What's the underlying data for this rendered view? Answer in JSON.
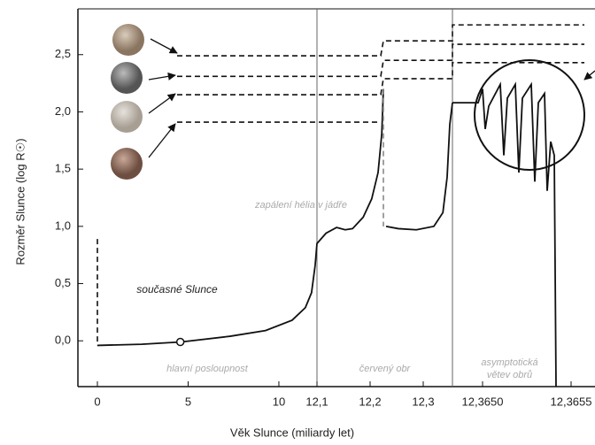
{
  "chart_data": {
    "type": "line",
    "y_label": "Rozměr Slunce (log R☉)",
    "x_label": "Věk Slunce (miliardy let)",
    "ylim": [
      -0.4,
      2.9
    ],
    "yticks": [
      {
        "value": 0,
        "label": "0,0"
      },
      {
        "value": 0.5,
        "label": "0,5"
      },
      {
        "value": 1,
        "label": "1,0"
      },
      {
        "value": 1.5,
        "label": "1,5"
      },
      {
        "value": 2,
        "label": "2,0"
      },
      {
        "value": 2.5,
        "label": "2,5"
      }
    ],
    "x_segments": [
      {
        "xlim": [
          0,
          12.1
        ],
        "xticks": [
          0,
          5,
          10
        ],
        "label": [
          "hlavní posloupnost"
        ]
      },
      {
        "xlim": [
          12.1,
          12.355
        ],
        "xticks": [
          {
            "value": 12.1,
            "label": "12,1"
          },
          {
            "value": 12.2,
            "label": "12,2"
          },
          {
            "value": 12.3,
            "label": "12,3"
          }
        ],
        "label": [
          "červený obr"
        ]
      },
      {
        "xlim": [
          12.36483,
          12.365635
        ],
        "xticks": [
          {
            "value": 12.365,
            "label": "12,3650"
          },
          {
            "value": 12.3655,
            "label": "12,3655"
          }
        ],
        "label": [
          "asymptotická",
          "větev obrů"
        ]
      }
    ],
    "series": [
      {
        "color": "#111",
        "dashed": false,
        "x": [
          0,
          2.44,
          4.63,
          7.32,
          9.27,
          10.73,
          11.46,
          11.8,
          12.0,
          12.1,
          12.117,
          12.137,
          12.153,
          12.167,
          12.187,
          12.203,
          12.215,
          12.222,
          12.225,
          null,
          12.23,
          12.253,
          12.287,
          12.32,
          12.337,
          12.345,
          12.35,
          12.355,
          null,
          12.36483,
          12.364975,
          12.365,
          12.365015,
          12.365035,
          12.3651,
          12.36512,
          12.36514,
          12.365185,
          12.365205,
          12.365225,
          12.365275,
          12.365295,
          12.365315,
          12.36535,
          12.365365,
          12.365385,
          12.365405,
          12.365415
        ],
        "values": [
          -0.04,
          -0.03,
          -0.01,
          0.04,
          0.09,
          0.18,
          0.29,
          0.42,
          0.66,
          0.85,
          0.94,
          0.99,
          0.97,
          0.98,
          1.08,
          1.24,
          1.47,
          1.81,
          2.2,
          null,
          1.0,
          0.98,
          0.97,
          1.0,
          1.12,
          1.43,
          1.89,
          2.08,
          null,
          2.08,
          2.08,
          2.2,
          1.85,
          2.05,
          2.24,
          1.62,
          2.12,
          2.24,
          1.47,
          2.12,
          2.24,
          1.39,
          2.08,
          2.16,
          1.31,
          1.74,
          1.62,
          -0.4
        ]
      },
      {
        "color": "#111",
        "dashed": true,
        "x": [
          0,
          0
        ],
        "values": [
          0.89,
          -0.04
        ]
      },
      {
        "color": "#888",
        "dashed": true,
        "x": [
          12.225,
          12.225
        ],
        "values": [
          2.2,
          1.0
        ]
      },
      {
        "color": "#111",
        "dashed": true,
        "x": [
          4.39,
          12.22,
          12.225,
          12.355,
          12.36483,
          12.365575
        ],
        "values": [
          2.49,
          2.49,
          2.62,
          2.62,
          2.76,
          2.76
        ]
      },
      {
        "color": "#111",
        "dashed": true,
        "x": [
          4.39,
          12.22,
          12.225,
          12.355,
          12.36483,
          12.365575
        ],
        "values": [
          2.31,
          2.31,
          2.45,
          2.45,
          2.59,
          2.59
        ]
      },
      {
        "color": "#111",
        "dashed": true,
        "x": [
          4.39,
          12.22,
          12.225,
          12.355,
          12.36483,
          12.365575
        ],
        "values": [
          2.15,
          2.15,
          2.29,
          2.29,
          2.43,
          2.43
        ]
      },
      {
        "color": "#111",
        "dashed": true,
        "x": [
          4.39,
          12.22
        ],
        "values": [
          1.91,
          1.91
        ]
      }
    ],
    "marker": {
      "x": 4.57,
      "value": -0.01
    },
    "annotations": [
      "současné Slunce",
      "zapálení hélia v jádře"
    ]
  }
}
